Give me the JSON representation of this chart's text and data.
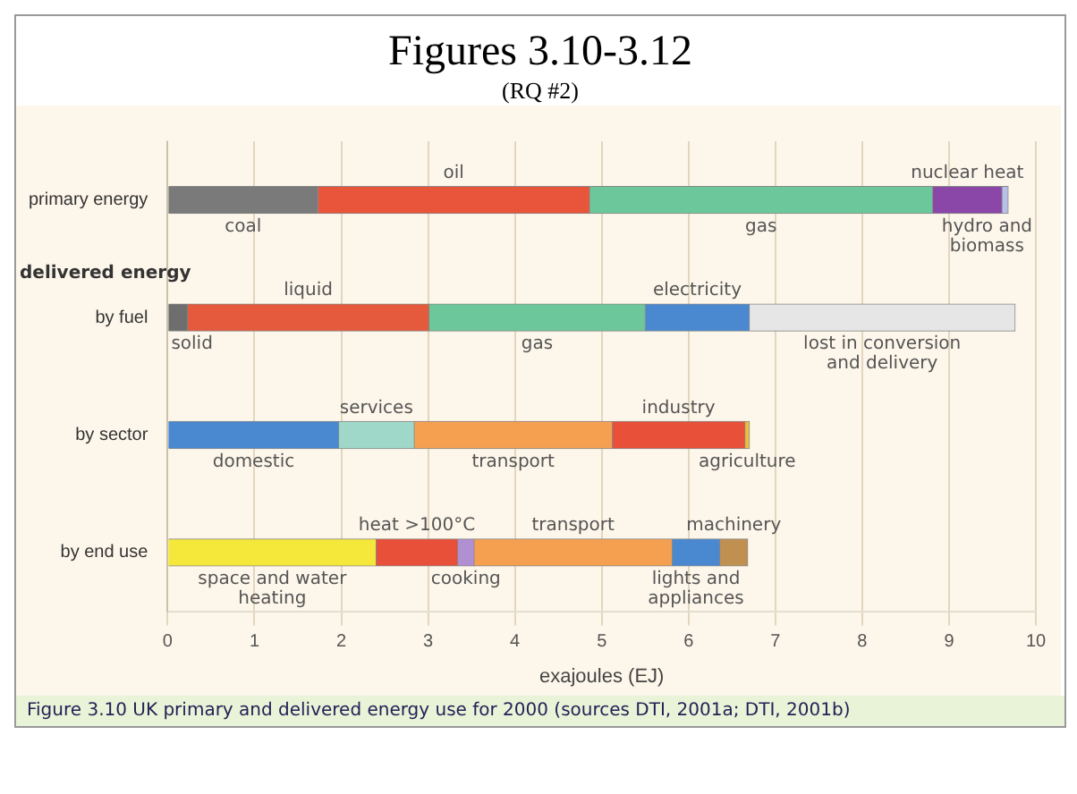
{
  "chart_data": {
    "type": "bar",
    "orientation": "horizontal",
    "stacked": true,
    "title": "Figures 3.10-3.12",
    "subtitle": "(RQ #2)",
    "xlabel": "exajoules (EJ)",
    "categories": [
      "primary energy",
      "by fuel",
      "by sector",
      "by end use"
    ],
    "xlim": [
      0,
      10
    ],
    "xticks": [
      0,
      1,
      2,
      3,
      4,
      5,
      6,
      7,
      8,
      9,
      10
    ],
    "grid": "x",
    "legend": false,
    "annotations": [
      "delivered energy",
      "Figure 3.10 UK primary and delivered energy use for 2000 (sources DTI, 2001a; DTI, 2001b)"
    ],
    "series": [
      {
        "name": "coal",
        "color": "#7a7a7a",
        "values": [
          1.73,
          null,
          null,
          null
        ]
      },
      {
        "name": "oil",
        "color": "#e8553a",
        "values": [
          3.13,
          null,
          null,
          null
        ]
      },
      {
        "name": "gas",
        "color": "#6cc79a",
        "values": [
          3.95,
          null,
          null,
          null
        ]
      },
      {
        "name": "nuclear heat",
        "color": "#8b47a8",
        "values": [
          0.8,
          null,
          null,
          null
        ]
      },
      {
        "name": "hydro and biomass",
        "color": "#b8c0e8",
        "values": [
          0.07,
          null,
          null,
          null
        ]
      },
      {
        "name": "solid",
        "color": "#6e6e6e",
        "values": [
          null,
          0.23,
          null,
          null
        ]
      },
      {
        "name": "liquid",
        "color": "#e55a3c",
        "values": [
          null,
          2.78,
          null,
          null
        ]
      },
      {
        "name": "gas",
        "color": "#6cc79a",
        "values": [
          null,
          2.49,
          null,
          null
        ]
      },
      {
        "name": "electricity",
        "color": "#4a88d0",
        "values": [
          null,
          1.2,
          null,
          null
        ]
      },
      {
        "name": "lost in conversion and delivery",
        "color": "#e6e6e6",
        "values": [
          null,
          3.06,
          null,
          null
        ]
      },
      {
        "name": "domestic",
        "color": "#4a88d0",
        "values": [
          null,
          null,
          1.97,
          null
        ]
      },
      {
        "name": "services",
        "color": "#9fd8c8",
        "values": [
          null,
          null,
          0.87,
          null
        ]
      },
      {
        "name": "transport",
        "color": "#f5a050",
        "values": [
          null,
          null,
          2.28,
          null
        ]
      },
      {
        "name": "industry",
        "color": "#e8503a",
        "values": [
          null,
          null,
          1.53,
          null
        ]
      },
      {
        "name": "agriculture",
        "color": "#e8c040",
        "values": [
          null,
          null,
          0.05,
          null
        ]
      },
      {
        "name": "space and water heating",
        "color": "#f5e83a",
        "values": [
          null,
          null,
          null,
          2.4
        ]
      },
      {
        "name": "heat >100°C",
        "color": "#e8503a",
        "values": [
          null,
          null,
          null,
          0.94
        ]
      },
      {
        "name": "cooking",
        "color": "#b090d0",
        "values": [
          null,
          null,
          null,
          0.19
        ]
      },
      {
        "name": "transport",
        "color": "#f5a050",
        "values": [
          null,
          null,
          null,
          2.28
        ]
      },
      {
        "name": "lights and appliances",
        "color": "#4a88d0",
        "values": [
          null,
          null,
          null,
          0.55
        ]
      },
      {
        "name": "machinery",
        "color": "#c09050",
        "values": [
          null,
          null,
          null,
          0.32
        ]
      }
    ]
  }
}
